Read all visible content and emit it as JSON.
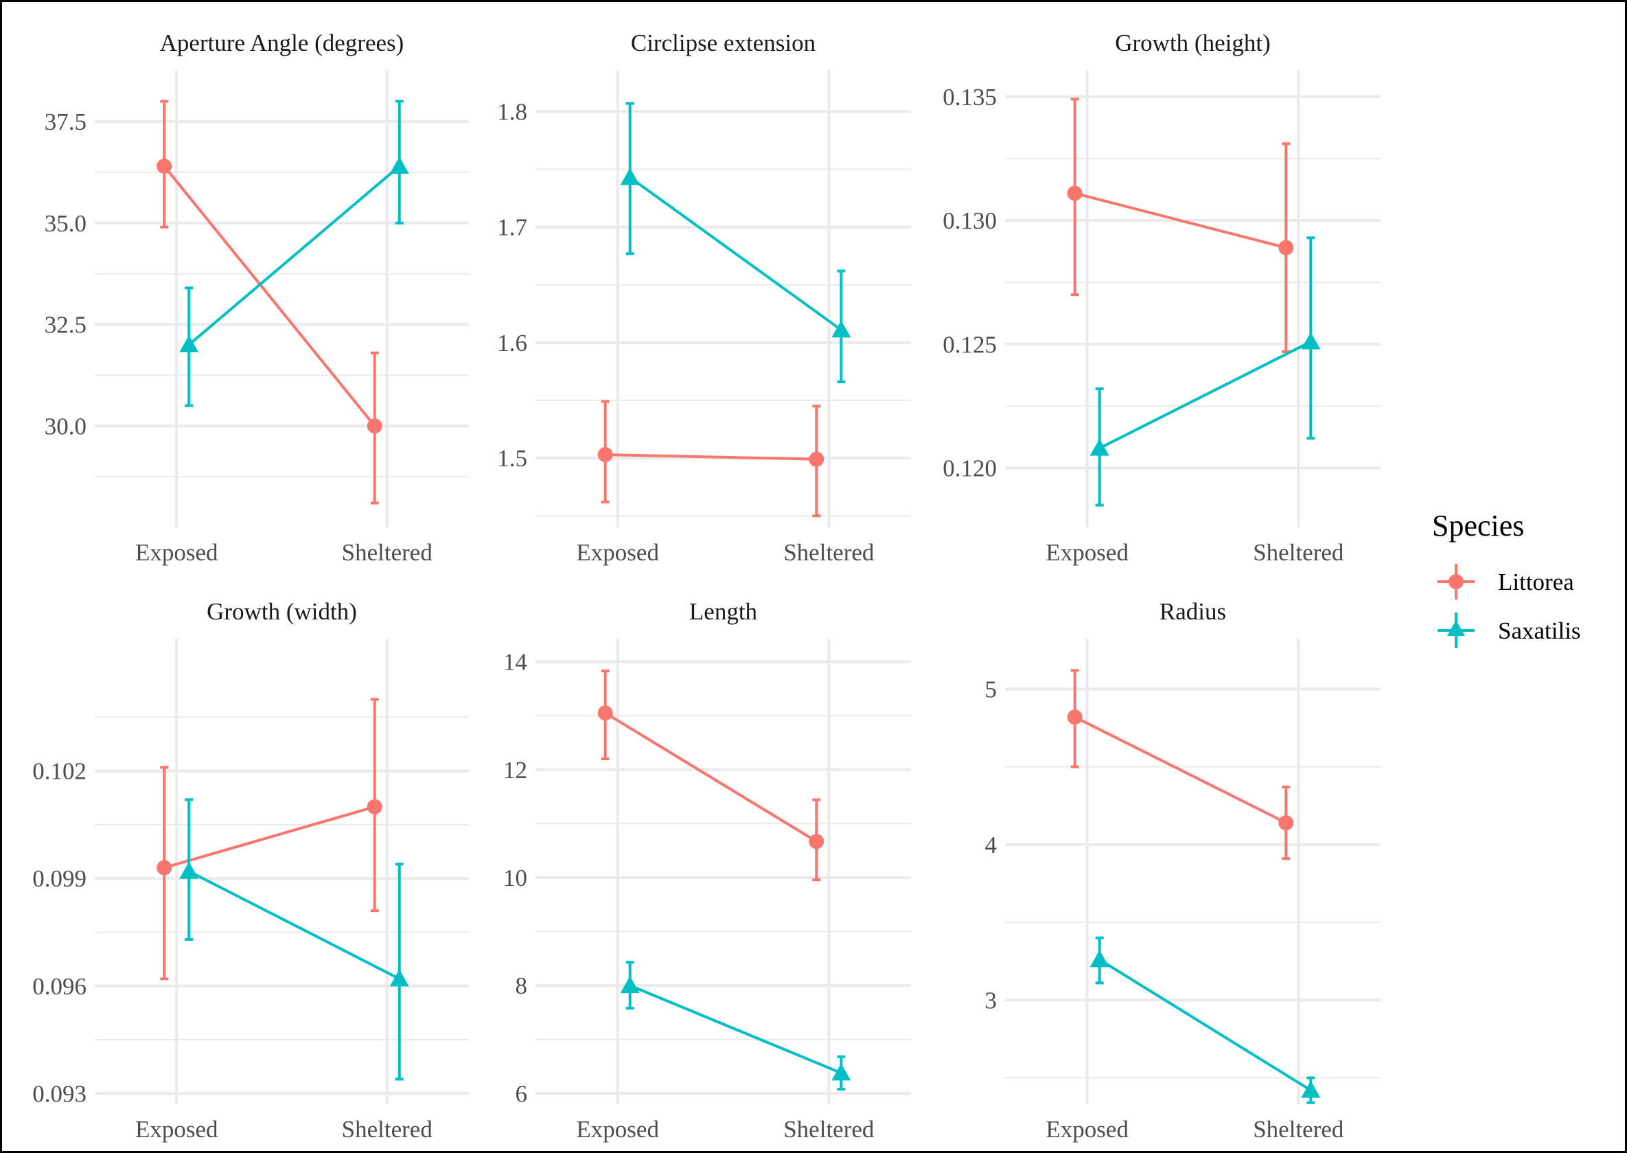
{
  "colors": {
    "Littorea": "#F8766D",
    "Saxatilis": "#00BFC4"
  },
  "legend": {
    "title": "Species",
    "entries": [
      {
        "name": "Littorea",
        "shape": "circle"
      },
      {
        "name": "Saxatilis",
        "shape": "triangle"
      }
    ]
  },
  "chart_data": [
    {
      "type": "line",
      "title": "Aperture Angle (degrees)",
      "categories": [
        "Exposed",
        "Sheltered"
      ],
      "ylim": [
        27.5,
        38.6
      ],
      "yticks": [
        30.0,
        32.5,
        35.0,
        37.5
      ],
      "ytick_labels": [
        "30.0",
        "32.5",
        "35.0",
        "37.5"
      ],
      "series": [
        {
          "name": "Littorea",
          "values": [
            36.4,
            30.0
          ],
          "lower": [
            34.9,
            28.1
          ],
          "upper": [
            38.0,
            31.8
          ]
        },
        {
          "name": "Saxatilis",
          "values": [
            32.0,
            36.4
          ],
          "lower": [
            30.5,
            35.0
          ],
          "upper": [
            33.4,
            38.0
          ]
        }
      ]
    },
    {
      "type": "line",
      "title": "Circlipse extension",
      "categories": [
        "Exposed",
        "Sheltered"
      ],
      "ylim": [
        1.44,
        1.83
      ],
      "yticks": [
        1.5,
        1.6,
        1.7,
        1.8
      ],
      "ytick_labels": [
        "1.5",
        "1.6",
        "1.7",
        "1.8"
      ],
      "series": [
        {
          "name": "Littorea",
          "values": [
            1.503,
            1.499
          ],
          "lower": [
            1.462,
            1.45
          ],
          "upper": [
            1.549,
            1.545
          ]
        },
        {
          "name": "Saxatilis",
          "values": [
            1.743,
            1.611
          ],
          "lower": [
            1.677,
            1.566
          ],
          "upper": [
            1.807,
            1.662
          ]
        }
      ]
    },
    {
      "type": "line",
      "title": "Growth (height)",
      "categories": [
        "Exposed",
        "Sheltered"
      ],
      "ylim": [
        0.1176,
        0.1358
      ],
      "yticks": [
        0.12,
        0.125,
        0.13,
        0.135
      ],
      "ytick_labels": [
        "0.120",
        "0.125",
        "0.130",
        "0.135"
      ],
      "series": [
        {
          "name": "Littorea",
          "values": [
            0.1311,
            0.1289
          ],
          "lower": [
            0.127,
            0.1247
          ],
          "upper": [
            0.1349,
            0.1331
          ]
        },
        {
          "name": "Saxatilis",
          "values": [
            0.1208,
            0.1251
          ],
          "lower": [
            0.1185,
            0.1212
          ],
          "upper": [
            0.1232,
            0.1293
          ]
        }
      ]
    },
    {
      "type": "line",
      "title": "Growth (width)",
      "categories": [
        "Exposed",
        "Sheltered"
      ],
      "ylim": [
        0.0927,
        0.1055
      ],
      "yticks": [
        0.093,
        0.096,
        0.099,
        0.102
      ],
      "ytick_labels": [
        "0.093",
        "0.096",
        "0.099",
        "0.102"
      ],
      "series": [
        {
          "name": "Littorea",
          "values": [
            0.0993,
            0.101
          ],
          "lower": [
            0.0962,
            0.0981
          ],
          "upper": [
            0.1021,
            0.104
          ]
        },
        {
          "name": "Saxatilis",
          "values": [
            0.0992,
            0.0962
          ],
          "lower": [
            0.0973,
            0.0934
          ],
          "upper": [
            0.1012,
            0.0994
          ]
        }
      ]
    },
    {
      "type": "line",
      "title": "Length",
      "categories": [
        "Exposed",
        "Sheltered"
      ],
      "ylim": [
        5.8,
        14.3
      ],
      "yticks": [
        6,
        8,
        10,
        12,
        14
      ],
      "ytick_labels": [
        "6",
        "8",
        "10",
        "12",
        "14"
      ],
      "series": [
        {
          "name": "Littorea",
          "values": [
            13.05,
            10.67
          ],
          "lower": [
            12.2,
            9.96
          ],
          "upper": [
            13.83,
            11.44
          ]
        },
        {
          "name": "Saxatilis",
          "values": [
            8.0,
            6.38
          ],
          "lower": [
            7.58,
            6.08
          ],
          "upper": [
            8.43,
            6.68
          ]
        }
      ]
    },
    {
      "type": "line",
      "title": "Radius",
      "categories": [
        "Exposed",
        "Sheltered"
      ],
      "ylim": [
        2.33,
        5.28
      ],
      "yticks": [
        3,
        4,
        5
      ],
      "ytick_labels": [
        "3",
        "4",
        "5"
      ],
      "series": [
        {
          "name": "Littorea",
          "values": [
            4.82,
            4.14
          ],
          "lower": [
            4.5,
            3.91
          ],
          "upper": [
            5.12,
            4.37
          ]
        },
        {
          "name": "Saxatilis",
          "values": [
            3.26,
            2.42
          ],
          "lower": [
            3.11,
            2.34
          ],
          "upper": [
            3.4,
            2.5
          ]
        }
      ]
    }
  ]
}
